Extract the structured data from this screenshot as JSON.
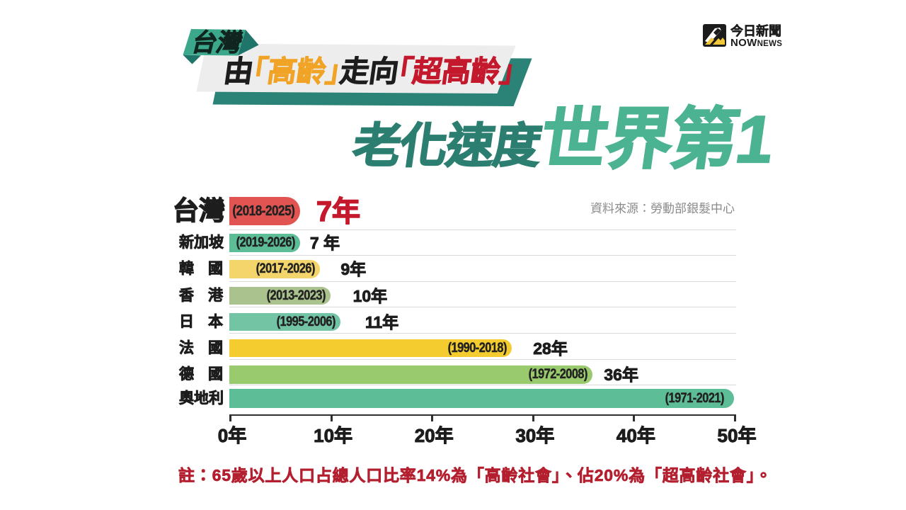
{
  "header": {
    "badge": "台灣",
    "title": {
      "prefix": "由",
      "highlight1": "「高齡」",
      "middle": "走向",
      "highlight2": "「超高齡」"
    },
    "subtitle": {
      "part1": "老化速度",
      "part2": "世界第1"
    },
    "colors": {
      "badge_front": "#3ba88b",
      "badge_side": "#20756b",
      "banner_face": "#ededed",
      "banner_side": "#2a8376",
      "title_dark": "#1d1d1d",
      "title_amber": "#f0a325",
      "title_red": "#c4182d",
      "subtitle_dark_teal": "#2b7e70",
      "subtitle_light_teal": "#4cb392"
    }
  },
  "logo": {
    "zh": "今日新聞",
    "en_main": "NOW",
    "en_sub": "NEWS"
  },
  "source_note": "資料來源：勞動部銀髮中心",
  "footnote": "註：65歲以上人口占總人口比率14%為「高齡社會」、佔20%為「超高齡社會」。",
  "chart_data": {
    "type": "bar",
    "orientation": "horizontal",
    "unit": "年",
    "xlim": [
      0,
      50
    ],
    "x_ticks": [
      "0年",
      "10年",
      "20年",
      "30年",
      "40年",
      "50年"
    ],
    "grid": "row-separator-lines",
    "rows": [
      {
        "country": "台灣",
        "period": "(2018-2025)",
        "years": 7,
        "value_label": "7年",
        "color": "#e25452",
        "value_color": "#c4182d",
        "highlight": true
      },
      {
        "country": "新加坡",
        "period": "(2019-2026)",
        "years": 7,
        "value_label": "7 年",
        "color": "#5dbd97",
        "value_color": "#1d1d1d"
      },
      {
        "country": "韓國",
        "period": "(2017-2026)",
        "years": 9,
        "value_label": "9年",
        "color": "#f3d56b",
        "value_color": "#1d1d1d"
      },
      {
        "country": "香港",
        "period": "(2013-2023)",
        "years": 10,
        "value_label": "10年",
        "color": "#aac28d",
        "value_color": "#1d1d1d"
      },
      {
        "country": "日本",
        "period": "(1995-2006)",
        "years": 11,
        "value_label": "11年",
        "color": "#72c4a5",
        "value_color": "#1d1d1d"
      },
      {
        "country": "法國",
        "period": "(1990-2018)",
        "years": 28,
        "value_label": "28年",
        "color": "#f4cc2f",
        "value_color": "#1d1d1d"
      },
      {
        "country": "德國",
        "period": "(1972-2008)",
        "years": 36,
        "value_label": "36年",
        "color": "#9aca6e",
        "value_color": "#1d1d1d"
      },
      {
        "country": "奧地利",
        "period": "(1971-2021)",
        "years": 50,
        "value_label": "",
        "color": "#5dbd97",
        "value_color": "#1d1d1d"
      }
    ]
  }
}
